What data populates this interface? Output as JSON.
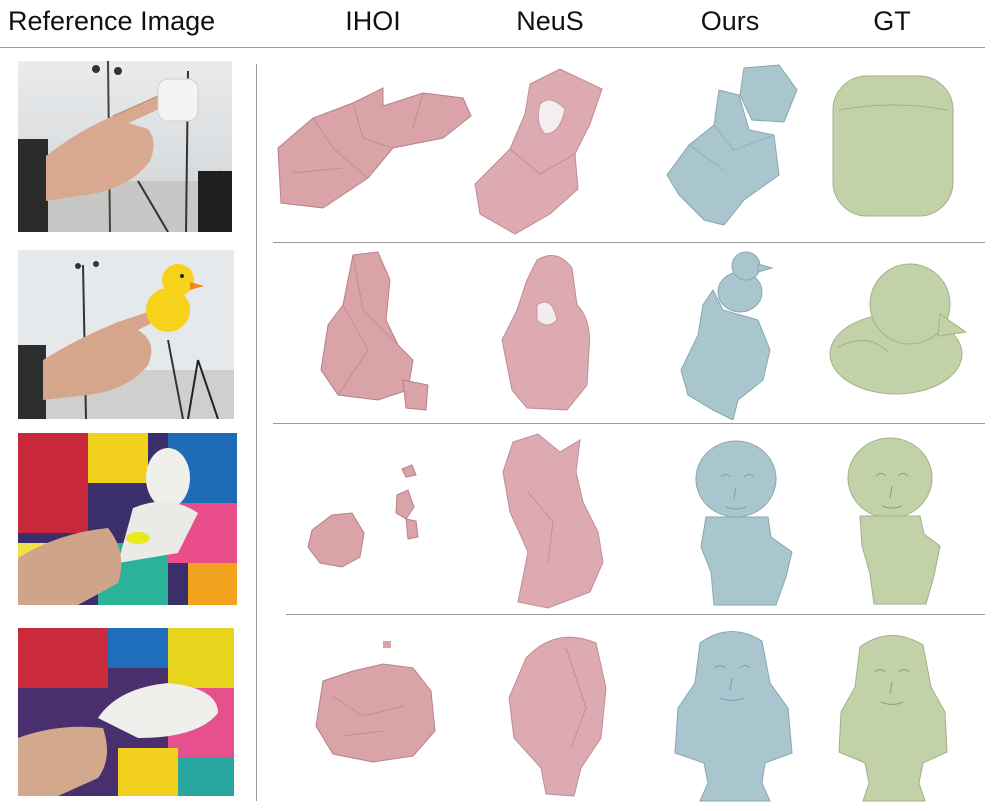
{
  "figure": {
    "columns": [
      {
        "key": "ref",
        "label": "Reference Image"
      },
      {
        "key": "ihoi",
        "label": "IHOI"
      },
      {
        "key": "neus",
        "label": "NeuS"
      },
      {
        "key": "ours",
        "label": "Ours"
      },
      {
        "key": "gt",
        "label": "GT"
      }
    ],
    "rows": [
      {
        "object": "airpods-case"
      },
      {
        "object": "rubber-duck"
      },
      {
        "object": "david-bust"
      },
      {
        "object": "moliere-bust"
      }
    ],
    "colors": {
      "ihoi": "#d9a3a8",
      "neus": "#dcaab0",
      "ours": "#a9c6cf",
      "gt": "#c3d1a9",
      "rule": "#9a9a9a"
    }
  }
}
